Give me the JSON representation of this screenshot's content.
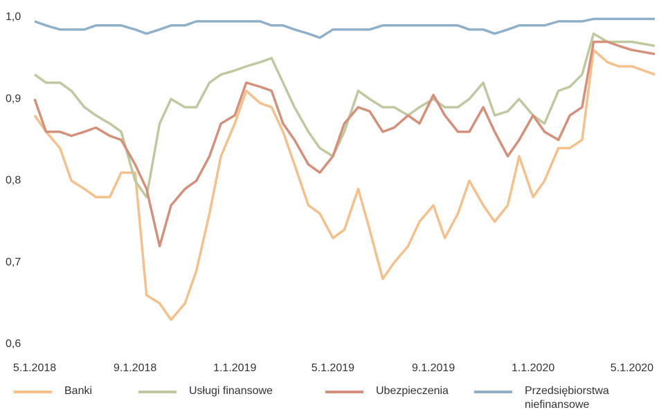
{
  "chart_data": {
    "type": "line",
    "x": [
      "5.1.2018",
      "5.15.2018",
      "6.1.2018",
      "6.15.2018",
      "7.1.2018",
      "7.15.2018",
      "8.1.2018",
      "8.15.2018",
      "9.1.2018",
      "9.15.2018",
      "10.1.2018",
      "10.15.2018",
      "11.1.2018",
      "11.15.2018",
      "12.1.2018",
      "12.15.2018",
      "1.1.2019",
      "1.15.2019",
      "2.1.2019",
      "2.15.2019",
      "3.1.2019",
      "3.15.2019",
      "4.1.2019",
      "4.15.2019",
      "5.1.2019",
      "5.15.2019",
      "6.1.2019",
      "6.15.2019",
      "7.1.2019",
      "7.15.2019",
      "8.1.2019",
      "8.15.2019",
      "9.1.2019",
      "9.15.2019",
      "10.1.2019",
      "10.15.2019",
      "11.1.2019",
      "11.15.2019",
      "12.1.2019",
      "12.15.2019",
      "1.1.2020",
      "1.15.2020",
      "2.1.2020",
      "2.15.2020",
      "3.1.2020",
      "3.15.2020",
      "4.1.2020",
      "4.15.2020",
      "5.1.2020",
      "5.29.2020"
    ],
    "series": [
      {
        "name": "Banki",
        "color": "#f5c08a",
        "values": [
          0.88,
          0.86,
          0.84,
          0.8,
          0.79,
          0.78,
          0.78,
          0.81,
          0.81,
          0.66,
          0.65,
          0.63,
          0.65,
          0.69,
          0.76,
          0.83,
          0.87,
          0.91,
          0.895,
          0.89,
          0.86,
          0.82,
          0.77,
          0.76,
          0.73,
          0.74,
          0.79,
          0.74,
          0.68,
          0.7,
          0.72,
          0.75,
          0.77,
          0.73,
          0.76,
          0.8,
          0.77,
          0.75,
          0.77,
          0.83,
          0.78,
          0.8,
          0.84,
          0.84,
          0.85,
          0.96,
          0.945,
          0.94,
          0.94,
          0.93
        ]
      },
      {
        "name": "Usługi finansowe",
        "color": "#bfc9a0",
        "values": [
          0.93,
          0.92,
          0.92,
          0.91,
          0.89,
          0.88,
          0.87,
          0.86,
          0.8,
          0.78,
          0.87,
          0.9,
          0.89,
          0.89,
          0.92,
          0.93,
          0.935,
          0.94,
          0.945,
          0.95,
          0.92,
          0.89,
          0.86,
          0.84,
          0.83,
          0.86,
          0.91,
          0.9,
          0.89,
          0.89,
          0.88,
          0.89,
          0.9,
          0.89,
          0.89,
          0.9,
          0.92,
          0.88,
          0.885,
          0.9,
          0.88,
          0.87,
          0.91,
          0.915,
          0.93,
          0.98,
          0.97,
          0.97,
          0.97,
          0.965
        ]
      },
      {
        "name": "Ubezpieczenia",
        "color": "#d4907a",
        "values": [
          0.9,
          0.86,
          0.86,
          0.855,
          0.86,
          0.865,
          0.855,
          0.85,
          0.82,
          0.79,
          0.72,
          0.77,
          0.79,
          0.8,
          0.83,
          0.87,
          0.88,
          0.92,
          0.915,
          0.91,
          0.87,
          0.85,
          0.82,
          0.81,
          0.83,
          0.87,
          0.89,
          0.885,
          0.86,
          0.865,
          0.88,
          0.87,
          0.905,
          0.88,
          0.86,
          0.86,
          0.89,
          0.86,
          0.83,
          0.85,
          0.88,
          0.86,
          0.85,
          0.88,
          0.89,
          0.97,
          0.97,
          0.965,
          0.96,
          0.955
        ]
      },
      {
        "name": "Przedsiębiorstwa niefinansowe",
        "color": "#8fb0c8",
        "values": [
          0.995,
          0.99,
          0.985,
          0.985,
          0.985,
          0.99,
          0.99,
          0.99,
          0.985,
          0.98,
          0.985,
          0.99,
          0.99,
          0.995,
          0.995,
          0.995,
          0.995,
          0.995,
          0.995,
          0.99,
          0.99,
          0.985,
          0.98,
          0.975,
          0.985,
          0.985,
          0.985,
          0.985,
          0.99,
          0.99,
          0.99,
          0.99,
          0.99,
          0.99,
          0.99,
          0.985,
          0.985,
          0.98,
          0.985,
          0.99,
          0.99,
          0.99,
          0.995,
          0.995,
          0.995,
          0.998,
          0.998,
          0.998,
          0.998,
          0.998
        ]
      }
    ],
    "xlim": [
      "5.1.2018",
      "5.29.2020"
    ],
    "xticks": [
      "5.1.2018",
      "9.1.2018",
      "1.1.2019",
      "5.1.2019",
      "9.1.2019",
      "1.1.2020",
      "5.1.2020"
    ],
    "ylim": [
      0.6,
      1.0
    ],
    "yticks": [
      {
        "value": 0.6,
        "label": "0,6"
      },
      {
        "value": 0.7,
        "label": "0,7"
      },
      {
        "value": 0.8,
        "label": "0,8"
      },
      {
        "value": 0.9,
        "label": "0,9"
      },
      {
        "value": 1.0,
        "label": "1,0"
      }
    ],
    "grid": false
  }
}
